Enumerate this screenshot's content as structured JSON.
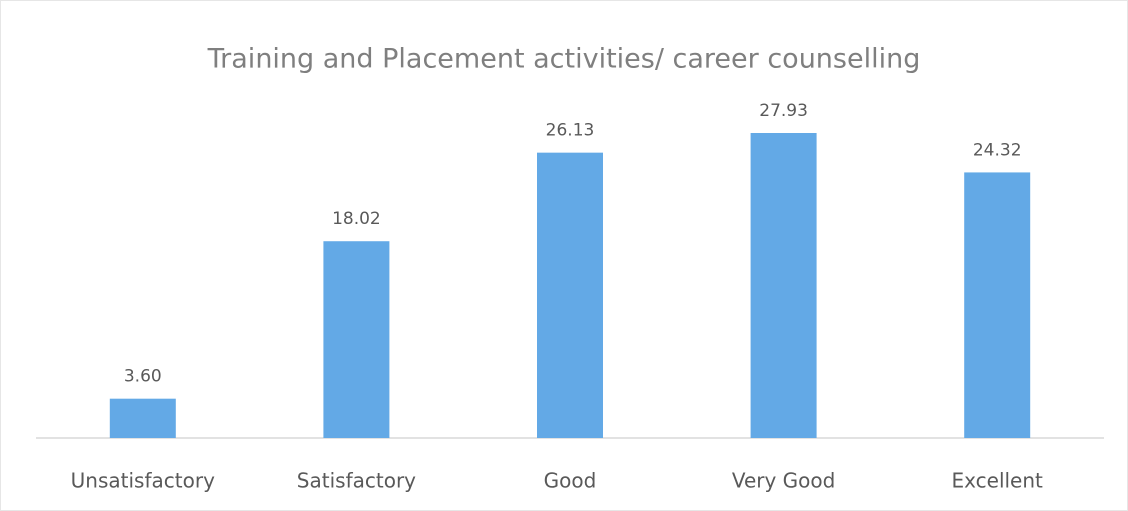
{
  "chart_data": {
    "type": "bar",
    "title": "Training and Placement activities/ career counselling",
    "categories": [
      "Unsatisfactory",
      "Satisfactory",
      "Good",
      "Very Good",
      "Excellent"
    ],
    "values": [
      3.6,
      18.02,
      26.13,
      27.93,
      24.32
    ],
    "value_labels": [
      "3.60",
      "18.02",
      "26.13",
      "27.93",
      "24.32"
    ],
    "color": "#63a9e6"
  }
}
